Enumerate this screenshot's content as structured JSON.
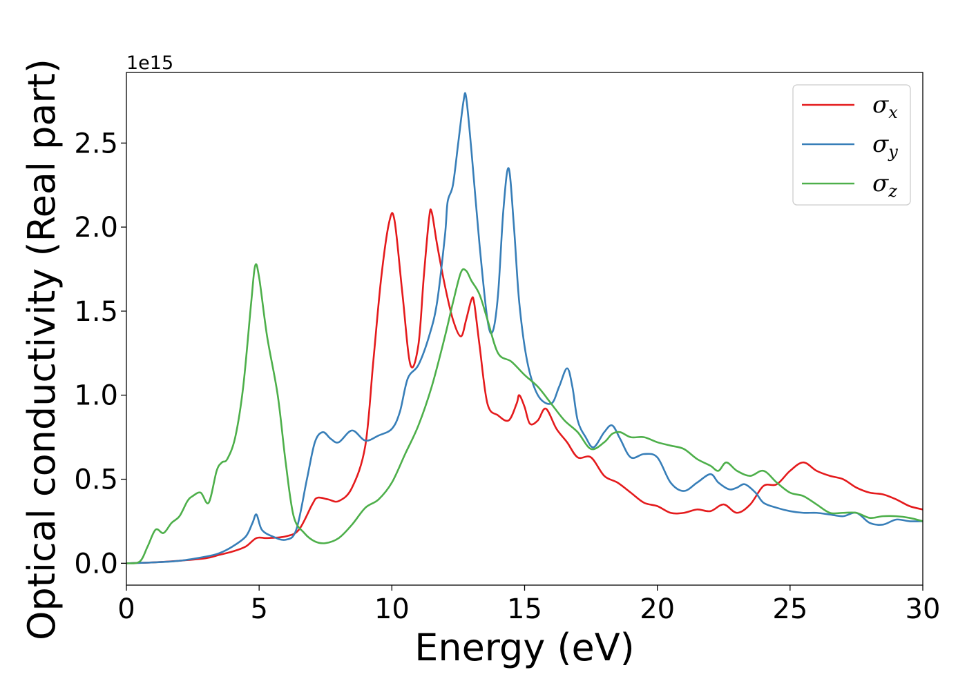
{
  "chart_data": {
    "type": "line",
    "title": "",
    "xlabel": "Energy (eV)",
    "ylabel": "Optical conductivity (Real part)",
    "y_offset_label": "1e15",
    "xlim": [
      0,
      30
    ],
    "ylim": [
      -0.13,
      2.92
    ],
    "xticks": [
      0,
      5,
      10,
      15,
      20,
      25,
      30
    ],
    "xtick_labels": [
      "0",
      "5",
      "10",
      "15",
      "20",
      "25",
      "30"
    ],
    "yticks": [
      0.0,
      0.5,
      1.0,
      1.5,
      2.0,
      2.5
    ],
    "ytick_labels": [
      "0.0",
      "0.5",
      "1.0",
      "1.5",
      "2.0",
      "2.5"
    ],
    "grid": false,
    "legend_position": "top-right",
    "series": [
      {
        "name": "σx",
        "symbol": "σ",
        "subscript": "x",
        "color": "#e41a1c",
        "x": [
          0,
          1,
          2,
          3,
          3.5,
          4,
          4.5,
          4.9,
          5.3,
          6,
          6.5,
          7,
          7.2,
          7.6,
          8,
          8.5,
          9,
          9.3,
          9.6,
          9.9,
          10.1,
          10.4,
          10.7,
          11,
          11.2,
          11.4,
          11.5,
          11.7,
          12,
          12.3,
          12.6,
          12.8,
          13,
          13.1,
          13.3,
          13.6,
          14,
          14.4,
          14.7,
          14.8,
          15,
          15.2,
          15.5,
          15.8,
          16.2,
          16.6,
          17,
          17.5,
          18,
          18.5,
          19,
          19.5,
          20,
          20.5,
          21,
          21.5,
          22,
          22.5,
          23,
          23.5,
          24,
          24.5,
          25,
          25.5,
          26,
          26.5,
          27,
          27.5,
          28,
          28.5,
          29,
          29.5,
          30
        ],
        "values": [
          0,
          0.005,
          0.015,
          0.03,
          0.05,
          0.07,
          0.1,
          0.15,
          0.15,
          0.16,
          0.2,
          0.35,
          0.39,
          0.38,
          0.37,
          0.45,
          0.7,
          1.2,
          1.7,
          2.03,
          2.04,
          1.6,
          1.18,
          1.3,
          1.7,
          2.05,
          2.09,
          1.9,
          1.65,
          1.45,
          1.35,
          1.45,
          1.57,
          1.55,
          1.3,
          0.95,
          0.88,
          0.85,
          0.95,
          1.0,
          0.93,
          0.83,
          0.85,
          0.92,
          0.8,
          0.72,
          0.63,
          0.63,
          0.52,
          0.48,
          0.42,
          0.36,
          0.34,
          0.3,
          0.3,
          0.32,
          0.31,
          0.35,
          0.3,
          0.35,
          0.46,
          0.47,
          0.55,
          0.6,
          0.55,
          0.52,
          0.5,
          0.45,
          0.42,
          0.41,
          0.38,
          0.34,
          0.32
        ]
      },
      {
        "name": "σy",
        "symbol": "σ",
        "subscript": "y",
        "color": "#377eb8",
        "x": [
          0,
          1,
          2,
          3,
          3.5,
          4,
          4.5,
          4.75,
          4.9,
          5.1,
          5.5,
          6,
          6.4,
          6.8,
          7.1,
          7.4,
          7.7,
          8,
          8.5,
          9,
          9.5,
          10,
          10.3,
          10.6,
          11,
          11.4,
          11.7,
          12,
          12.1,
          12.3,
          12.5,
          12.7,
          12.8,
          13,
          13.3,
          13.6,
          13.8,
          14,
          14.2,
          14.4,
          14.6,
          14.8,
          15.1,
          15.5,
          16,
          16.3,
          16.6,
          16.8,
          17,
          17.3,
          17.6,
          18,
          18.3,
          18.6,
          19,
          19.5,
          20,
          20.5,
          21,
          21.5,
          22,
          22.3,
          22.7,
          23,
          23.3,
          23.7,
          24,
          24.5,
          25,
          25.5,
          26,
          26.5,
          27,
          27.5,
          28,
          28.5,
          29,
          29.5,
          30
        ],
        "values": [
          0,
          0.005,
          0.015,
          0.04,
          0.06,
          0.1,
          0.16,
          0.24,
          0.29,
          0.2,
          0.16,
          0.14,
          0.2,
          0.5,
          0.72,
          0.78,
          0.74,
          0.72,
          0.79,
          0.73,
          0.76,
          0.8,
          0.9,
          1.1,
          1.18,
          1.35,
          1.55,
          1.95,
          2.15,
          2.25,
          2.5,
          2.75,
          2.77,
          2.45,
          1.9,
          1.45,
          1.38,
          1.6,
          2.1,
          2.35,
          2.0,
          1.55,
          1.2,
          1.0,
          0.95,
          1.05,
          1.16,
          1.05,
          0.85,
          0.75,
          0.69,
          0.78,
          0.82,
          0.74,
          0.63,
          0.65,
          0.63,
          0.48,
          0.43,
          0.48,
          0.53,
          0.48,
          0.44,
          0.45,
          0.47,
          0.42,
          0.36,
          0.33,
          0.31,
          0.3,
          0.3,
          0.29,
          0.28,
          0.3,
          0.24,
          0.23,
          0.26,
          0.25,
          0.25
        ]
      },
      {
        "name": "σz",
        "symbol": "σ",
        "subscript": "z",
        "color": "#4daf4a",
        "x": [
          0,
          0.5,
          0.8,
          1.1,
          1.4,
          1.7,
          2,
          2.3,
          2.5,
          2.8,
          3.1,
          3.4,
          3.6,
          3.8,
          4.1,
          4.4,
          4.7,
          4.85,
          5,
          5.3,
          5.7,
          6,
          6.3,
          6.7,
          7.1,
          7.5,
          8,
          8.5,
          9,
          9.5,
          10,
          10.5,
          11,
          11.5,
          12,
          12.3,
          12.6,
          12.8,
          13,
          13.3,
          13.6,
          14,
          14.5,
          15,
          15.5,
          16,
          16.5,
          17,
          17.5,
          18,
          18.3,
          18.6,
          19,
          19.5,
          20,
          20.5,
          21,
          21.5,
          22,
          22.3,
          22.6,
          23,
          23.5,
          24,
          24.5,
          25,
          25.5,
          26,
          26.5,
          27,
          27.5,
          28,
          28.5,
          29,
          29.5,
          30
        ],
        "values": [
          0,
          0.01,
          0.1,
          0.2,
          0.18,
          0.24,
          0.28,
          0.37,
          0.4,
          0.42,
          0.36,
          0.55,
          0.6,
          0.62,
          0.75,
          1.05,
          1.55,
          1.77,
          1.7,
          1.35,
          1.0,
          0.6,
          0.28,
          0.18,
          0.13,
          0.12,
          0.15,
          0.23,
          0.33,
          0.38,
          0.48,
          0.65,
          0.82,
          1.05,
          1.35,
          1.55,
          1.73,
          1.74,
          1.68,
          1.6,
          1.45,
          1.25,
          1.2,
          1.12,
          1.05,
          0.95,
          0.85,
          0.78,
          0.68,
          0.72,
          0.77,
          0.78,
          0.75,
          0.75,
          0.72,
          0.7,
          0.68,
          0.62,
          0.58,
          0.55,
          0.6,
          0.55,
          0.52,
          0.55,
          0.48,
          0.42,
          0.4,
          0.35,
          0.3,
          0.3,
          0.3,
          0.27,
          0.28,
          0.28,
          0.27,
          0.25
        ]
      }
    ]
  }
}
